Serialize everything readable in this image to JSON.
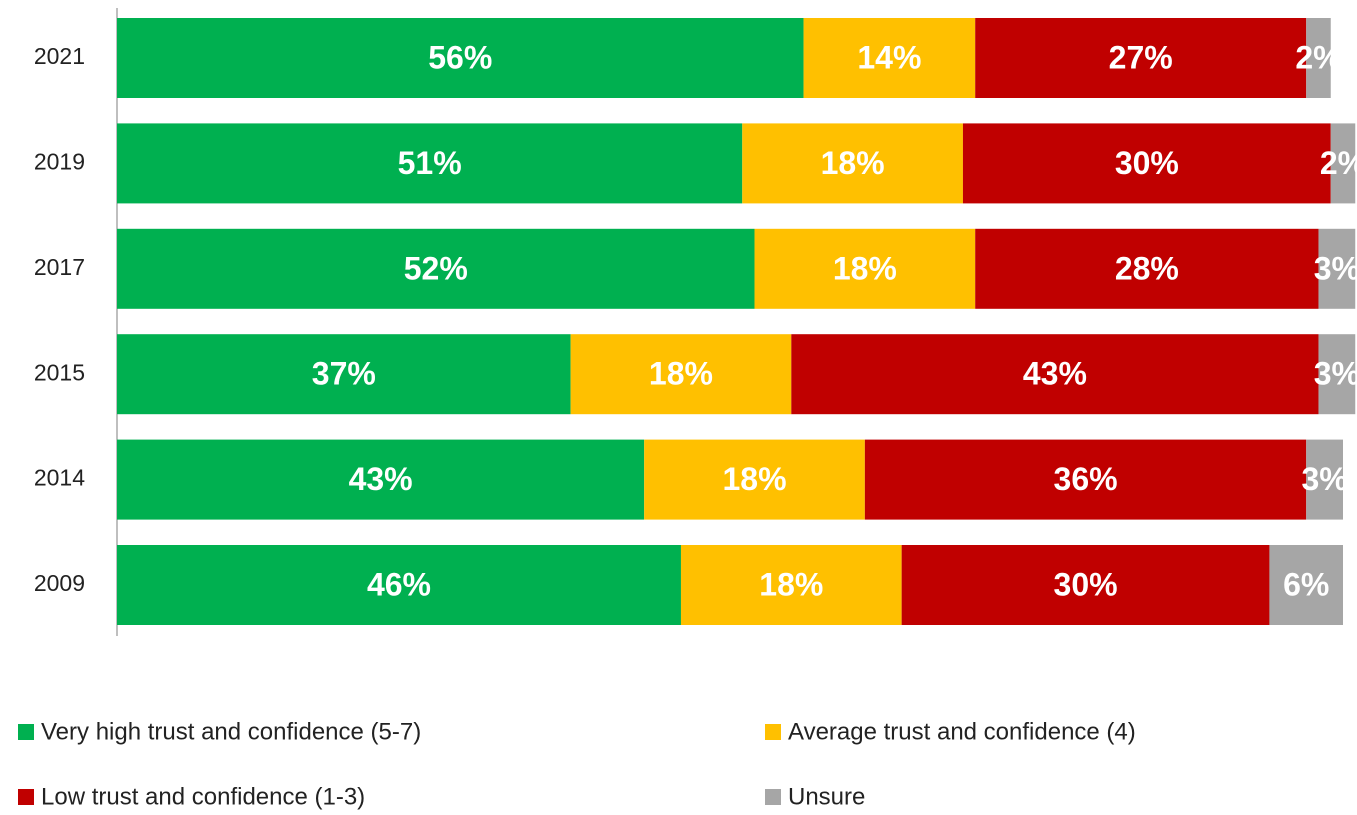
{
  "chart_data": {
    "type": "bar",
    "orientation": "horizontal",
    "stacked": true,
    "categories": [
      "2021",
      "2019",
      "2017",
      "2015",
      "2014",
      "2009"
    ],
    "xlim": [
      0,
      100
    ],
    "series": [
      {
        "name": "Very high trust and confidence (5-7)",
        "color": "#00b050",
        "values": [
          56,
          51,
          52,
          37,
          43,
          46
        ],
        "value_labels": [
          "56%",
          "51%",
          "52%",
          "37%",
          "43%",
          "46%"
        ]
      },
      {
        "name": "Average trust and confidence (4)",
        "color": "#ffc000",
        "values": [
          14,
          18,
          18,
          18,
          18,
          18
        ],
        "value_labels": [
          "14%",
          "18%",
          "18%",
          "18%",
          "18%",
          "18%"
        ]
      },
      {
        "name": "Low trust and confidence (1-3)",
        "color": "#c00000",
        "values": [
          27,
          30,
          28,
          43,
          36,
          30
        ],
        "value_labels": [
          "27%",
          "30%",
          "28%",
          "43%",
          "36%",
          "30%"
        ]
      },
      {
        "name": "Unsure",
        "color": "#a6a6a6",
        "values": [
          2,
          2,
          3,
          3,
          3,
          6
        ],
        "value_labels": [
          "2%",
          "2%",
          "3%",
          "3%",
          "3%",
          "6%"
        ]
      }
    ]
  }
}
